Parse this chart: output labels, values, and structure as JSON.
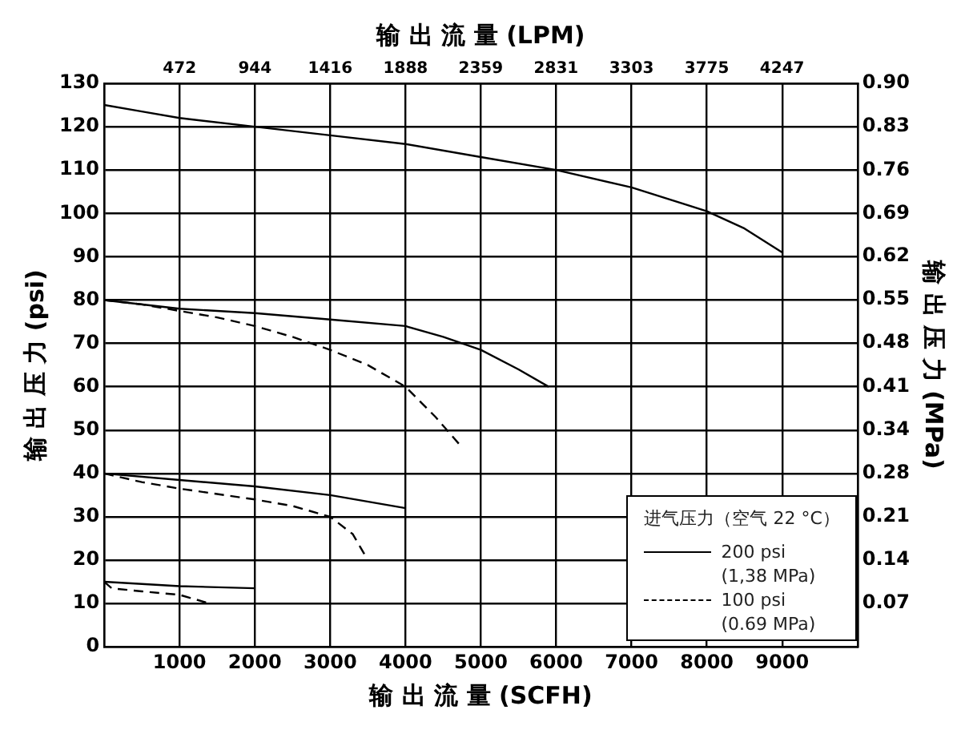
{
  "chart_data": {
    "type": "line",
    "xlabel": "输 出 流 量 (SCFH)",
    "x2label": "输 出 流 量 (LPM)",
    "ylabel": "输 出 压 力 (psi)",
    "y2label": "输 出 压 力 (MPa)",
    "legend_title": "进气压力（空气 22 °C）",
    "legend": "bottom right",
    "grid": true,
    "marker": "none",
    "xlim": [
      0,
      10000
    ],
    "xticks": [
      {
        "value": 0,
        "label": null
      },
      1000,
      2000,
      3000,
      4000,
      5000,
      6000,
      7000,
      8000,
      9000,
      {
        "value": 10000,
        "label": null
      }
    ],
    "x2lim": [
      0,
      4719
    ],
    "x2ticks": [
      472,
      944,
      1416,
      1888,
      2359,
      2831,
      3303,
      3775,
      4247
    ],
    "ylim": [
      0,
      130
    ],
    "yticks": [
      0,
      10,
      20,
      30,
      40,
      50,
      60,
      70,
      80,
      90,
      100,
      110,
      120,
      130
    ],
    "y2lim": [
      0,
      0.896
    ],
    "y2ticks": [
      {
        "value": 0.069,
        "label": "0.07"
      },
      {
        "value": 0.138,
        "label": "0.14"
      },
      {
        "value": 0.207,
        "label": "0.21"
      },
      {
        "value": 0.276,
        "label": "0.28"
      },
      {
        "value": 0.345,
        "label": "0.34"
      },
      {
        "value": 0.414,
        "label": "0.41"
      },
      {
        "value": 0.483,
        "label": "0.48"
      },
      {
        "value": 0.552,
        "label": "0.55"
      },
      {
        "value": 0.621,
        "label": "0.62"
      },
      {
        "value": 0.689,
        "label": "0.69"
      },
      {
        "value": 0.758,
        "label": "0.76"
      },
      {
        "value": 0.827,
        "label": "0.83"
      },
      {
        "value": 0.896,
        "label": "0.90"
      }
    ],
    "series": [
      {
        "name": "200 psi\n(1,38 MPa)",
        "line_style": "solid",
        "color": "#000000",
        "x": [
          0,
          500,
          1000,
          2000,
          3000,
          4000,
          5000,
          6000,
          7000,
          8000,
          8500,
          9000
        ],
        "values": [
          125,
          123.5,
          122,
          120,
          118,
          116,
          113,
          110,
          106,
          100.5,
          96.5,
          91
        ]
      },
      {
        "line_style": "solid",
        "color": "#000000",
        "x": [
          0,
          1000,
          2000,
          3000,
          4000,
          4500,
          5000,
          5500,
          5900
        ],
        "values": [
          80,
          78,
          77,
          75.5,
          74,
          71.5,
          68.5,
          64,
          60
        ]
      },
      {
        "line_style": "solid",
        "color": "#000000",
        "x": [
          0,
          1000,
          2000,
          3000,
          4000
        ],
        "values": [
          40,
          38.5,
          37,
          35,
          32
        ]
      },
      {
        "line_style": "solid",
        "color": "#000000",
        "x": [
          0,
          1000,
          2000
        ],
        "values": [
          15,
          14,
          13.5
        ]
      },
      {
        "name": "100 psi\n(0.69 MPa)",
        "line_style": "dashed",
        "color": "#000000",
        "x": [
          0,
          500,
          1000,
          1500,
          2000,
          2500,
          3000,
          3500,
          4000,
          4400,
          4750
        ],
        "values": [
          80,
          79,
          77.5,
          76,
          74,
          71.5,
          68.5,
          65,
          60,
          53,
          46
        ]
      },
      {
        "line_style": "dashed",
        "color": "#000000",
        "x": [
          0,
          500,
          1000,
          2000,
          2500,
          3000,
          3300,
          3500
        ],
        "values": [
          40,
          38,
          36.5,
          34,
          32.5,
          30,
          26,
          20
        ]
      },
      {
        "line_style": "dashed",
        "color": "#000000",
        "x": [
          0,
          100,
          500,
          1000,
          1400
        ],
        "values": [
          15,
          13.5,
          12.8,
          12,
          10
        ]
      }
    ]
  }
}
